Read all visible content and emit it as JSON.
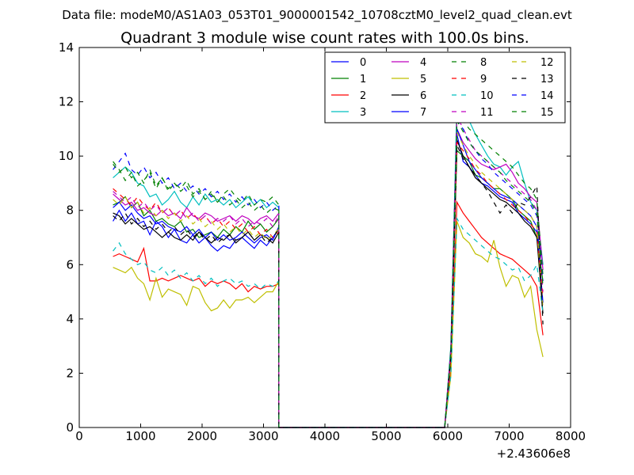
{
  "suptitle": "Data file: modeM0/AS1A03_053T01_9000001542_10708cztM0_level2_quad_clean.evt",
  "chart_data": {
    "type": "line",
    "title": "Quadrant 3 module wise count rates with 100.0s bins.",
    "xlabel": "",
    "ylabel": "",
    "x_offset_label": "+2.43606e8",
    "xlim": [
      0,
      8000
    ],
    "ylim": [
      0,
      14
    ],
    "xticks": [
      0,
      1000,
      2000,
      3000,
      4000,
      5000,
      6000,
      7000,
      8000
    ],
    "yticks": [
      0,
      2,
      4,
      6,
      8,
      10,
      12,
      14
    ],
    "legend_position": "top-right",
    "legend_columns": 4,
    "segment1": {
      "start": 550,
      "step": 100,
      "end": 3150,
      "drop_x": 3250
    },
    "segment2": {
      "rise_x": 5950,
      "rise_top_x": 6050,
      "start": 6150,
      "step": 100,
      "end": 7550
    },
    "series": [
      {
        "name": "0",
        "color": "#0000ff",
        "dashed": false,
        "values1": [
          7.6,
          8.0,
          7.6,
          7.9,
          7.5,
          7.6,
          7.1,
          7.6,
          7.4,
          7.0,
          7.3,
          6.9,
          6.8,
          7.1,
          6.8,
          7.0,
          6.7,
          6.5,
          6.7,
          6.6,
          6.9,
          7.0,
          6.8,
          6.6,
          6.9,
          6.7,
          7.0,
          7.3
        ],
        "values2": [
          10.8,
          9.8,
          9.6,
          9.3,
          9.0,
          8.9,
          8.7,
          8.5,
          8.4,
          8.3,
          7.9,
          7.7,
          7.5,
          7.2,
          6.0
        ]
      },
      {
        "name": "1",
        "color": "#008000",
        "dashed": false,
        "values1": [
          8.2,
          8.3,
          8.5,
          8.1,
          8.3,
          7.8,
          8.0,
          7.6,
          7.7,
          7.5,
          7.4,
          7.6,
          7.2,
          7.3,
          7.0,
          7.1,
          7.2,
          7.0,
          7.3,
          7.1,
          7.4,
          7.2,
          7.6,
          7.3,
          7.5,
          7.2,
          7.4,
          7.7
        ],
        "values2": [
          10.2,
          10.0,
          9.8,
          9.3,
          9.2,
          9.0,
          8.8,
          8.8,
          8.6,
          8.4,
          8.0,
          7.8,
          7.6,
          7.0,
          5.4
        ]
      },
      {
        "name": "2",
        "color": "#ff0000",
        "dashed": false,
        "values1": [
          6.3,
          6.4,
          6.3,
          6.2,
          6.1,
          6.6,
          5.4,
          5.4,
          5.5,
          5.4,
          5.5,
          5.6,
          5.5,
          5.4,
          5.5,
          5.2,
          5.4,
          5.3,
          5.4,
          5.3,
          5.1,
          5.3,
          5.0,
          5.2,
          5.1,
          5.2,
          5.2,
          5.3
        ],
        "values2": [
          8.3,
          7.9,
          7.6,
          7.3,
          7.0,
          6.8,
          6.6,
          6.4,
          6.3,
          6.2,
          6.0,
          5.8,
          5.6,
          5.2,
          3.4
        ]
      },
      {
        "name": "3",
        "color": "#00bfbf",
        "dashed": false,
        "values1": [
          9.2,
          9.4,
          9.6,
          9.4,
          9.0,
          8.9,
          8.5,
          8.6,
          8.2,
          8.4,
          8.7,
          8.3,
          8.1,
          8.5,
          8.2,
          8.6,
          8.3,
          8.4,
          8.2,
          8.4,
          8.1,
          8.3,
          8.5,
          8.2,
          8.4,
          8.1,
          8.3,
          8.1
        ],
        "values2": [
          12.0,
          11.7,
          11.3,
          10.8,
          10.4,
          10.0,
          9.7,
          9.6,
          9.3,
          9.6,
          9.8,
          9.0,
          8.3,
          8.0,
          6.0
        ]
      },
      {
        "name": "4",
        "color": "#bf00bf",
        "dashed": false,
        "values1": [
          8.6,
          8.4,
          8.2,
          8.3,
          8.0,
          8.1,
          7.9,
          7.8,
          8.0,
          7.8,
          7.9,
          7.7,
          8.1,
          7.8,
          7.7,
          7.9,
          7.8,
          7.6,
          7.7,
          7.8,
          7.6,
          7.8,
          7.7,
          7.5,
          7.7,
          7.8,
          7.6,
          7.9
        ],
        "values2": [
          11.0,
          10.5,
          10.2,
          9.9,
          9.7,
          9.6,
          9.5,
          9.6,
          9.7,
          9.4,
          9.0,
          8.8,
          8.5,
          8.3,
          5.8
        ]
      },
      {
        "name": "5",
        "color": "#bfbf00",
        "dashed": false,
        "values1": [
          5.9,
          5.8,
          5.7,
          5.9,
          5.5,
          5.3,
          4.7,
          5.5,
          4.8,
          5.1,
          5.0,
          4.9,
          4.5,
          5.2,
          5.1,
          4.6,
          4.3,
          4.4,
          4.7,
          4.4,
          4.7,
          4.7,
          4.8,
          4.6,
          4.8,
          5.0,
          5.0,
          5.4
        ],
        "values2": [
          7.6,
          7.0,
          6.8,
          6.4,
          6.3,
          6.1,
          6.9,
          5.9,
          5.2,
          5.6,
          5.5,
          4.8,
          5.2,
          3.6,
          2.6
        ]
      },
      {
        "name": "6",
        "color": "#000000",
        "dashed": false,
        "values1": [
          7.9,
          7.8,
          7.5,
          7.7,
          7.5,
          7.3,
          7.4,
          7.2,
          7.0,
          7.2,
          7.0,
          6.9,
          7.1,
          6.9,
          7.2,
          7.0,
          6.8,
          7.0,
          6.9,
          7.1,
          6.8,
          7.0,
          7.2,
          6.9,
          7.1,
          7.0,
          6.8,
          7.2
        ],
        "values2": [
          10.6,
          10.0,
          9.6,
          9.2,
          9.0,
          8.8,
          8.6,
          8.4,
          8.3,
          8.1,
          7.9,
          7.6,
          7.4,
          7.0,
          4.2
        ]
      },
      {
        "name": "7",
        "color": "#0000ff",
        "dashed": false,
        "values1": [
          8.1,
          8.3,
          8.0,
          8.2,
          7.9,
          7.7,
          7.8,
          7.5,
          7.6,
          7.4,
          7.3,
          7.2,
          7.4,
          7.1,
          7.3,
          7.0,
          7.2,
          6.9,
          7.1,
          6.9,
          7.0,
          7.2,
          7.0,
          6.8,
          7.0,
          7.1,
          6.9,
          7.4
        ],
        "values2": [
          11.0,
          10.4,
          9.8,
          9.5,
          9.2,
          9.0,
          8.8,
          8.6,
          8.5,
          8.4,
          8.2,
          8.0,
          7.8,
          7.4,
          4.6
        ]
      },
      {
        "name": "8",
        "color": "#008000",
        "dashed": true,
        "values1": [
          9.8,
          9.5,
          9.1,
          9.4,
          8.9,
          9.1,
          9.4,
          8.8,
          9.2,
          8.7,
          9.0,
          8.8,
          9.1,
          8.6,
          8.8,
          8.4,
          8.7,
          8.3,
          8.6,
          8.8,
          8.5,
          8.3,
          8.6,
          8.2,
          8.4,
          8.3,
          8.5,
          8.2
        ],
        "values2": [
          11.7,
          11.3,
          11.0,
          10.8,
          10.6,
          10.4,
          10.2,
          10.0,
          9.8,
          9.6,
          9.3,
          9.0,
          8.8,
          8.4,
          5.6
        ]
      },
      {
        "name": "9",
        "color": "#ff0000",
        "dashed": true,
        "values1": [
          8.8,
          8.6,
          8.4,
          8.2,
          8.5,
          8.2,
          8.0,
          8.3,
          7.9,
          8.1,
          7.8,
          8.0,
          7.7,
          7.9,
          7.6,
          7.8,
          7.5,
          7.7,
          7.4,
          7.6,
          7.3,
          7.5,
          7.2,
          7.4,
          7.1,
          7.3,
          7.0,
          7.2
        ],
        "values2": [
          10.5,
          10.2,
          9.9,
          9.5,
          9.3,
          9.0,
          8.8,
          8.6,
          8.4,
          8.2,
          8.0,
          7.8,
          7.5,
          7.2,
          4.8
        ]
      },
      {
        "name": "10",
        "color": "#00bfbf",
        "dashed": true,
        "values1": [
          6.5,
          6.8,
          6.4,
          6.2,
          6.0,
          6.1,
          5.8,
          5.7,
          5.9,
          5.6,
          5.8,
          5.5,
          5.7,
          5.4,
          5.6,
          5.3,
          5.5,
          5.2,
          5.4,
          5.5,
          5.3,
          5.4,
          5.2,
          5.3,
          5.1,
          5.3,
          5.2,
          5.4
        ],
        "values2": [
          7.7,
          7.3,
          7.1,
          6.9,
          6.7,
          6.5,
          6.3,
          6.2,
          6.0,
          5.8,
          5.9,
          5.4,
          5.6,
          6.0,
          4.2
        ]
      },
      {
        "name": "11",
        "color": "#bf00bf",
        "dashed": true,
        "values1": [
          8.7,
          8.5,
          8.3,
          8.5,
          8.1,
          8.3,
          8.0,
          8.2,
          7.9,
          8.1,
          7.8,
          8.0,
          7.7,
          7.9,
          7.6,
          7.8,
          7.5,
          7.7,
          7.6,
          7.8,
          7.5,
          7.7,
          7.4,
          7.6,
          7.5,
          7.7,
          7.4,
          7.8
        ],
        "values2": [
          11.5,
          11.0,
          10.6,
          10.2,
          10.0,
          9.8,
          9.6,
          9.4,
          9.2,
          9.0,
          8.8,
          8.6,
          8.4,
          8.0,
          5.0
        ]
      },
      {
        "name": "12",
        "color": "#bfbf00",
        "dashed": true,
        "values1": [
          8.4,
          8.2,
          8.5,
          8.1,
          8.3,
          7.9,
          8.1,
          7.8,
          8.0,
          7.7,
          7.9,
          7.6,
          7.8,
          7.5,
          7.7,
          7.4,
          7.6,
          7.3,
          7.5,
          7.2,
          7.4,
          7.1,
          7.3,
          7.0,
          7.2,
          6.9,
          7.1,
          7.3
        ],
        "values2": [
          10.9,
          10.4,
          10.0,
          9.7,
          9.4,
          9.2,
          9.0,
          8.8,
          8.6,
          8.4,
          8.2,
          8.0,
          7.8,
          7.4,
          4.4
        ]
      },
      {
        "name": "13",
        "color": "#000000",
        "dashed": true,
        "values1": [
          7.8,
          7.6,
          7.9,
          7.5,
          7.7,
          7.4,
          7.6,
          7.3,
          7.5,
          7.2,
          7.4,
          7.1,
          7.3,
          7.0,
          7.2,
          6.9,
          7.1,
          6.8,
          7.0,
          7.1,
          6.9,
          7.0,
          7.2,
          6.9,
          7.1,
          6.8,
          7.0,
          7.3
        ],
        "values2": [
          10.4,
          9.9,
          9.6,
          9.3,
          9.0,
          8.7,
          8.3,
          7.9,
          8.2,
          7.9,
          8.3,
          8.2,
          8.5,
          8.9,
          3.8
        ]
      },
      {
        "name": "14",
        "color": "#0000ff",
        "dashed": true,
        "values1": [
          9.5,
          9.8,
          10.1,
          9.5,
          9.3,
          9.6,
          9.2,
          9.4,
          9.0,
          9.2,
          8.8,
          9.0,
          8.7,
          8.9,
          8.6,
          8.8,
          8.5,
          8.7,
          8.4,
          8.6,
          8.3,
          8.5,
          8.2,
          8.4,
          8.1,
          8.3,
          8.0,
          8.2
        ],
        "values2": [
          11.3,
          11.0,
          10.5,
          10.2,
          9.9,
          9.7,
          9.4,
          9.2,
          9.0,
          8.8,
          8.6,
          8.4,
          8.2,
          7.8,
          5.4
        ]
      },
      {
        "name": "15",
        "color": "#008000",
        "dashed": true,
        "values1": [
          9.7,
          9.4,
          9.6,
          9.2,
          9.4,
          9.0,
          9.5,
          8.9,
          9.2,
          8.8,
          9.0,
          8.7,
          8.9,
          8.5,
          8.7,
          8.4,
          8.6,
          8.3,
          8.5,
          8.2,
          8.4,
          8.1,
          8.3,
          8.0,
          8.2,
          7.9,
          8.1,
          8.0
        ],
        "values2": [
          11.3,
          10.9,
          10.5,
          10.2,
          10.0,
          9.8,
          9.6,
          9.4,
          9.1,
          8.9,
          8.7,
          8.5,
          8.3,
          7.9,
          5.2
        ]
      }
    ]
  }
}
